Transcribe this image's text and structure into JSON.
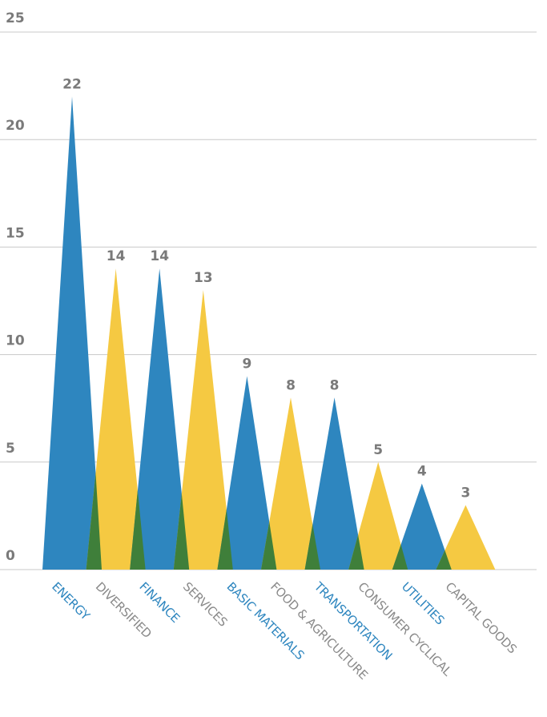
{
  "chart_data": {
    "type": "bar",
    "categories": [
      "ENERGY",
      "DIVERSIFIED",
      "FINANCE",
      "SERVICES",
      "BASIC MATERIALS",
      "FOOD & AGRICULTURE",
      "TRANSPORTATION",
      "CONSUMER CYCLICAL",
      "UTILITIES",
      "CAPITAL GOODS"
    ],
    "values": [
      22,
      14,
      14,
      13,
      9,
      8,
      8,
      5,
      4,
      3
    ],
    "data_labels": [
      "22",
      "14",
      "14",
      "13",
      "9",
      "8",
      "8",
      "5",
      "4",
      "3"
    ],
    "yticks": [
      "0",
      "5",
      "10",
      "15",
      "20",
      "25"
    ],
    "ylim": [
      0,
      25
    ],
    "grid": true,
    "colors": {
      "blue": "#2e86bf",
      "yellow": "#f5c942",
      "overlap": "#3f7f3a",
      "label_blue": "#2e86bf",
      "label_gray": "#8a8a8a",
      "tick": "#7a7a7a",
      "grid": "#c8c8c8"
    },
    "bar_colors": [
      "blue",
      "yellow",
      "blue",
      "yellow",
      "blue",
      "yellow",
      "blue",
      "yellow",
      "blue",
      "yellow"
    ],
    "title": "",
    "xlabel": "",
    "ylabel": ""
  }
}
